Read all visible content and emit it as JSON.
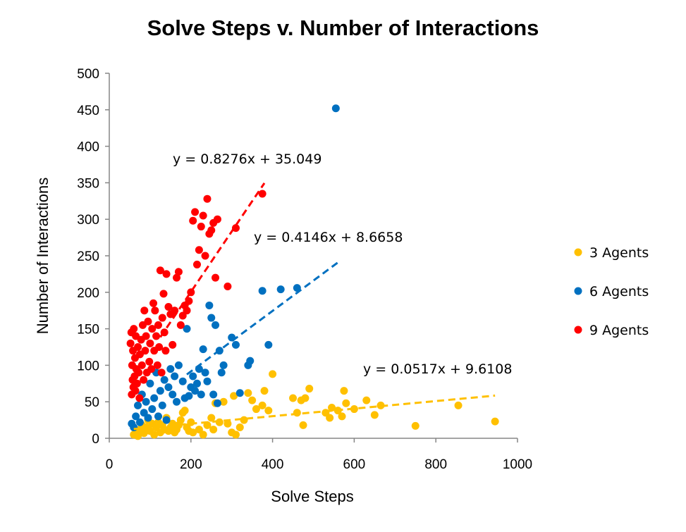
{
  "chart_data": {
    "type": "scatter",
    "title": "Solve Steps v. Number of Interactions",
    "xlabel": "Solve Steps",
    "ylabel": "Number of Interactions",
    "xlim": [
      0,
      1000
    ],
    "ylim": [
      0,
      500
    ],
    "x_ticks": [
      "0",
      "200",
      "400",
      "600",
      "800",
      "1000"
    ],
    "y_ticks": [
      "0",
      "50",
      "100",
      "150",
      "200",
      "250",
      "300",
      "350",
      "400",
      "450",
      "500"
    ],
    "grid": false,
    "legend_position": "right",
    "series": [
      {
        "name": "3 Agents",
        "color": "#FFC000",
        "points": [
          [
            60,
            5
          ],
          [
            65,
            8
          ],
          [
            70,
            3
          ],
          [
            75,
            12
          ],
          [
            80,
            18
          ],
          [
            85,
            7
          ],
          [
            90,
            15
          ],
          [
            95,
            25
          ],
          [
            100,
            10
          ],
          [
            105,
            20
          ],
          [
            110,
            5
          ],
          [
            115,
            15
          ],
          [
            120,
            22
          ],
          [
            125,
            8
          ],
          [
            130,
            18
          ],
          [
            135,
            12
          ],
          [
            140,
            28
          ],
          [
            145,
            10
          ],
          [
            150,
            15
          ],
          [
            155,
            20
          ],
          [
            160,
            8
          ],
          [
            165,
            12
          ],
          [
            170,
            18
          ],
          [
            175,
            25
          ],
          [
            180,
            35
          ],
          [
            185,
            38
          ],
          [
            190,
            15
          ],
          [
            195,
            10
          ],
          [
            200,
            22
          ],
          [
            205,
            8
          ],
          [
            220,
            12
          ],
          [
            230,
            5
          ],
          [
            240,
            18
          ],
          [
            250,
            28
          ],
          [
            255,
            12
          ],
          [
            260,
            48
          ],
          [
            270,
            22
          ],
          [
            280,
            50
          ],
          [
            290,
            20
          ],
          [
            300,
            8
          ],
          [
            305,
            58
          ],
          [
            310,
            5
          ],
          [
            320,
            15
          ],
          [
            330,
            25
          ],
          [
            340,
            62
          ],
          [
            350,
            52
          ],
          [
            360,
            40
          ],
          [
            375,
            45
          ],
          [
            380,
            65
          ],
          [
            390,
            38
          ],
          [
            400,
            88
          ],
          [
            450,
            55
          ],
          [
            460,
            35
          ],
          [
            470,
            52
          ],
          [
            475,
            18
          ],
          [
            480,
            55
          ],
          [
            490,
            68
          ],
          [
            530,
            35
          ],
          [
            540,
            28
          ],
          [
            545,
            42
          ],
          [
            560,
            38
          ],
          [
            570,
            30
          ],
          [
            575,
            65
          ],
          [
            580,
            48
          ],
          [
            600,
            40
          ],
          [
            630,
            52
          ],
          [
            650,
            32
          ],
          [
            665,
            45
          ],
          [
            750,
            17
          ],
          [
            855,
            45
          ],
          [
            945,
            23
          ]
        ],
        "trendline": {
          "slope": 0.0517,
          "intercept": 9.6108,
          "x_range": [
            60,
            945
          ],
          "label": "y = 0.0517x + 9.6108"
        }
      },
      {
        "name": "6 Agents",
        "color": "#0070C0",
        "points": [
          [
            55,
            20
          ],
          [
            60,
            15
          ],
          [
            65,
            30
          ],
          [
            70,
            45
          ],
          [
            75,
            22
          ],
          [
            80,
            60
          ],
          [
            85,
            35
          ],
          [
            90,
            50
          ],
          [
            95,
            28
          ],
          [
            100,
            75
          ],
          [
            105,
            40
          ],
          [
            110,
            55
          ],
          [
            115,
            90
          ],
          [
            120,
            30
          ],
          [
            125,
            65
          ],
          [
            130,
            45
          ],
          [
            135,
            80
          ],
          [
            140,
            25
          ],
          [
            145,
            70
          ],
          [
            150,
            95
          ],
          [
            155,
            60
          ],
          [
            160,
            85
          ],
          [
            165,
            50
          ],
          [
            170,
            100
          ],
          [
            180,
            78
          ],
          [
            185,
            55
          ],
          [
            190,
            150
          ],
          [
            195,
            58
          ],
          [
            200,
            70
          ],
          [
            205,
            85
          ],
          [
            210,
            65
          ],
          [
            215,
            75
          ],
          [
            220,
            95
          ],
          [
            225,
            60
          ],
          [
            230,
            122
          ],
          [
            235,
            90
          ],
          [
            240,
            78
          ],
          [
            245,
            182
          ],
          [
            250,
            165
          ],
          [
            255,
            60
          ],
          [
            260,
            155
          ],
          [
            265,
            48
          ],
          [
            270,
            120
          ],
          [
            275,
            90
          ],
          [
            280,
            100
          ],
          [
            300,
            138
          ],
          [
            310,
            128
          ],
          [
            320,
            62
          ],
          [
            340,
            100
          ],
          [
            345,
            106
          ],
          [
            375,
            202
          ],
          [
            390,
            128
          ],
          [
            420,
            204
          ],
          [
            460,
            206
          ],
          [
            555,
            452
          ]
        ],
        "trendline": {
          "slope": 0.4146,
          "intercept": 8.6658,
          "x_range": [
            190,
            560
          ],
          "label": "y = 0.4146x + 8.6658"
        }
      },
      {
        "name": "9 Agents",
        "color": "#FF0000",
        "points": [
          [
            52,
            130
          ],
          [
            54,
            145
          ],
          [
            55,
            60
          ],
          [
            56,
            100
          ],
          [
            57,
            80
          ],
          [
            58,
            120
          ],
          [
            59,
            70
          ],
          [
            60,
            150
          ],
          [
            62,
            85
          ],
          [
            63,
            110
          ],
          [
            64,
            65
          ],
          [
            65,
            140
          ],
          [
            66,
            95
          ],
          [
            68,
            75
          ],
          [
            70,
            125
          ],
          [
            72,
            90
          ],
          [
            74,
            55
          ],
          [
            75,
            115
          ],
          [
            78,
            135
          ],
          [
            80,
            100
          ],
          [
            82,
            155
          ],
          [
            84,
            80
          ],
          [
            86,
            175
          ],
          [
            88,
            120
          ],
          [
            90,
            140
          ],
          [
            92,
            90
          ],
          [
            95,
            160
          ],
          [
            98,
            105
          ],
          [
            100,
            130
          ],
          [
            103,
            95
          ],
          [
            105,
            150
          ],
          [
            108,
            185
          ],
          [
            110,
            120
          ],
          [
            112,
            175
          ],
          [
            115,
            140
          ],
          [
            118,
            100
          ],
          [
            120,
            155
          ],
          [
            122,
            125
          ],
          [
            125,
            230
          ],
          [
            128,
            90
          ],
          [
            130,
            165
          ],
          [
            133,
            198
          ],
          [
            135,
            145
          ],
          [
            138,
            120
          ],
          [
            140,
            225
          ],
          [
            145,
            180
          ],
          [
            150,
            170
          ],
          [
            155,
            128
          ],
          [
            160,
            175
          ],
          [
            165,
            220
          ],
          [
            170,
            228
          ],
          [
            175,
            155
          ],
          [
            180,
            168
          ],
          [
            185,
            182
          ],
          [
            190,
            175
          ],
          [
            195,
            188
          ],
          [
            200,
            200
          ],
          [
            205,
            298
          ],
          [
            210,
            310
          ],
          [
            215,
            238
          ],
          [
            220,
            258
          ],
          [
            225,
            290
          ],
          [
            230,
            305
          ],
          [
            235,
            250
          ],
          [
            240,
            328
          ],
          [
            245,
            280
          ],
          [
            250,
            285
          ],
          [
            255,
            295
          ],
          [
            260,
            220
          ],
          [
            265,
            300
          ],
          [
            290,
            208
          ],
          [
            310,
            288
          ],
          [
            375,
            335
          ]
        ],
        "trendline": {
          "slope": 0.8276,
          "intercept": 35.049,
          "x_range": [
            125,
            380
          ],
          "label": "y = 0.8276x + 35.049"
        }
      }
    ]
  }
}
